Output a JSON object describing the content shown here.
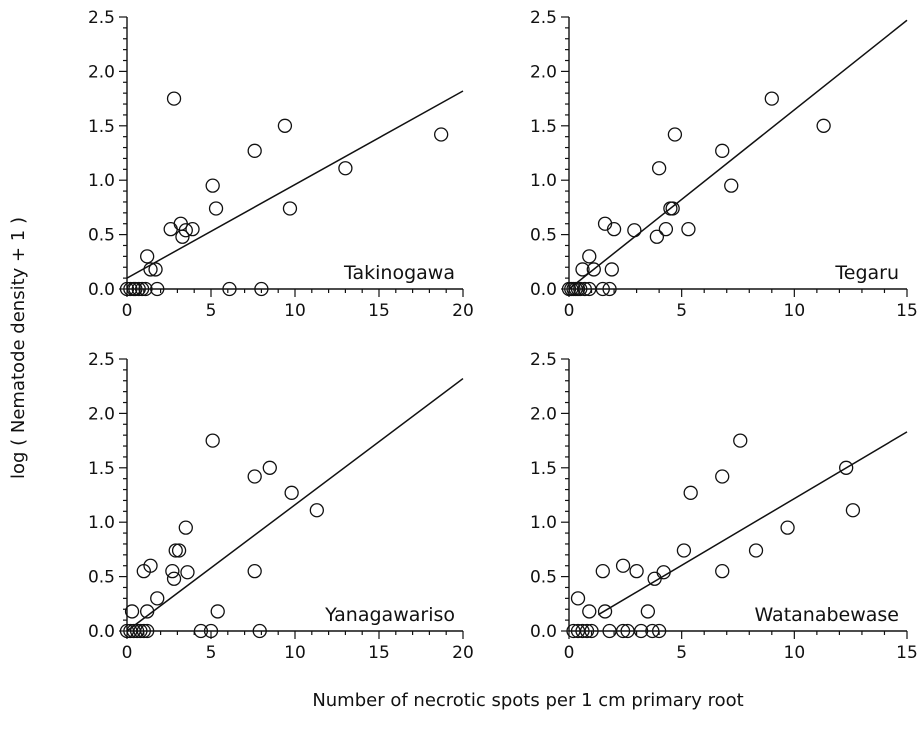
{
  "figure": {
    "ylabel": "log ( Nematode density + 1 )",
    "xlabel": "Number of necrotic spots per 1 cm primary root"
  },
  "chart_data": [
    {
      "type": "scatter",
      "panel": "Takinogawa",
      "title": "",
      "xlim": [
        0,
        20
      ],
      "ylim": [
        0,
        2.5
      ],
      "xticks": [
        0,
        5,
        10,
        15,
        20
      ],
      "yticks": [
        0.0,
        0.5,
        1.0,
        1.5,
        2.0,
        2.5
      ],
      "xtick_labels": [
        "0",
        "5",
        "10",
        "15",
        "20"
      ],
      "ytick_labels": [
        "0.0",
        "0.5",
        "1.0",
        "1.5",
        "2.0",
        "2.5"
      ],
      "fit_line": [
        [
          0,
          0.1
        ],
        [
          20,
          1.82
        ]
      ],
      "points": [
        [
          0,
          0
        ],
        [
          0.2,
          0
        ],
        [
          0.4,
          0
        ],
        [
          0.5,
          0
        ],
        [
          0.7,
          0
        ],
        [
          0.9,
          0
        ],
        [
          1.1,
          0
        ],
        [
          1.8,
          0
        ],
        [
          6.1,
          0
        ],
        [
          8.0,
          0
        ],
        [
          1.2,
          0.3
        ],
        [
          1.4,
          0.18
        ],
        [
          1.7,
          0.18
        ],
        [
          2.6,
          0.55
        ],
        [
          3.2,
          0.6
        ],
        [
          3.3,
          0.48
        ],
        [
          3.5,
          0.54
        ],
        [
          3.9,
          0.55
        ],
        [
          2.8,
          1.75
        ],
        [
          5.1,
          0.95
        ],
        [
          5.3,
          0.74
        ],
        [
          7.6,
          1.27
        ],
        [
          9.4,
          1.5
        ],
        [
          9.7,
          0.74
        ],
        [
          13.0,
          1.11
        ],
        [
          18.7,
          1.42
        ]
      ]
    },
    {
      "type": "scatter",
      "panel": "Tegaru",
      "title": "",
      "xlim": [
        0,
        15
      ],
      "ylim": [
        0,
        2.5
      ],
      "xticks": [
        0,
        5,
        10,
        15
      ],
      "yticks": [
        0.0,
        0.5,
        1.0,
        1.5,
        2.0,
        2.5
      ],
      "xtick_labels": [
        "0",
        "5",
        "10",
        "15"
      ],
      "ytick_labels": [
        "0.0",
        "0.5",
        "1.0",
        "1.5",
        "2.0",
        "2.5"
      ],
      "fit_line": [
        [
          0,
          0.0
        ],
        [
          15,
          2.47
        ]
      ],
      "points": [
        [
          0,
          0
        ],
        [
          0.1,
          0
        ],
        [
          0.2,
          0
        ],
        [
          0.3,
          0
        ],
        [
          0.4,
          0
        ],
        [
          0.5,
          0
        ],
        [
          0.7,
          0
        ],
        [
          0.9,
          0
        ],
        [
          1.5,
          0
        ],
        [
          1.8,
          0
        ],
        [
          0.6,
          0.18
        ],
        [
          0.9,
          0.3
        ],
        [
          1.1,
          0.18
        ],
        [
          1.9,
          0.18
        ],
        [
          1.6,
          0.6
        ],
        [
          2.0,
          0.55
        ],
        [
          2.9,
          0.54
        ],
        [
          3.9,
          0.48
        ],
        [
          4.3,
          0.55
        ],
        [
          4.5,
          0.74
        ],
        [
          4.6,
          0.74
        ],
        [
          5.3,
          0.55
        ],
        [
          4.0,
          1.11
        ],
        [
          4.7,
          1.42
        ],
        [
          6.8,
          1.27
        ],
        [
          7.2,
          0.95
        ],
        [
          9.0,
          1.75
        ],
        [
          11.3,
          1.5
        ]
      ]
    },
    {
      "type": "scatter",
      "panel": "Yanagawariso",
      "title": "",
      "xlim": [
        0,
        20
      ],
      "ylim": [
        0,
        2.5
      ],
      "xticks": [
        0,
        5,
        10,
        15,
        20
      ],
      "yticks": [
        0.0,
        0.5,
        1.0,
        1.5,
        2.0,
        2.5
      ],
      "xtick_labels": [
        "0",
        "5",
        "10",
        "15",
        "20"
      ],
      "ytick_labels": [
        "0.0",
        "0.5",
        "1.0",
        "1.5",
        "2.0",
        "2.5"
      ],
      "fit_line": [
        [
          0,
          0.0
        ],
        [
          20,
          2.32
        ]
      ],
      "points": [
        [
          0,
          0
        ],
        [
          0.2,
          0
        ],
        [
          0.4,
          0
        ],
        [
          0.6,
          0
        ],
        [
          0.8,
          0
        ],
        [
          1.0,
          0
        ],
        [
          1.2,
          0
        ],
        [
          4.4,
          0
        ],
        [
          5.0,
          0
        ],
        [
          7.9,
          0
        ],
        [
          0.3,
          0.18
        ],
        [
          1.2,
          0.18
        ],
        [
          1.8,
          0.3
        ],
        [
          1.0,
          0.55
        ],
        [
          1.4,
          0.6
        ],
        [
          2.7,
          0.55
        ],
        [
          2.8,
          0.48
        ],
        [
          2.9,
          0.74
        ],
        [
          3.1,
          0.74
        ],
        [
          3.6,
          0.54
        ],
        [
          3.5,
          0.95
        ],
        [
          5.1,
          1.75
        ],
        [
          5.4,
          0.18
        ],
        [
          7.6,
          1.42
        ],
        [
          7.6,
          0.55
        ],
        [
          8.5,
          1.5
        ],
        [
          9.8,
          1.27
        ],
        [
          11.3,
          1.11
        ]
      ]
    },
    {
      "type": "scatter",
      "panel": "Watanabewase",
      "title": "",
      "xlim": [
        0,
        15
      ],
      "ylim": [
        0,
        2.5
      ],
      "xticks": [
        0,
        5,
        10,
        15
      ],
      "yticks": [
        0.0,
        0.5,
        1.0,
        1.5,
        2.0,
        2.5
      ],
      "xtick_labels": [
        "0",
        "5",
        "10",
        "15"
      ],
      "ytick_labels": [
        "0.0",
        "0.5",
        "1.0",
        "1.5",
        "2.0",
        "2.5"
      ],
      "fit_line": [
        [
          1.3,
          0.15
        ],
        [
          15,
          1.83
        ]
      ],
      "points": [
        [
          0.2,
          0
        ],
        [
          0.4,
          0
        ],
        [
          0.6,
          0
        ],
        [
          0.8,
          0
        ],
        [
          1.0,
          0
        ],
        [
          1.8,
          0
        ],
        [
          2.4,
          0
        ],
        [
          2.6,
          0
        ],
        [
          3.2,
          0
        ],
        [
          3.7,
          0
        ],
        [
          4.0,
          0
        ],
        [
          0.4,
          0.3
        ],
        [
          0.9,
          0.18
        ],
        [
          1.6,
          0.18
        ],
        [
          3.5,
          0.18
        ],
        [
          1.5,
          0.55
        ],
        [
          2.4,
          0.6
        ],
        [
          3.0,
          0.55
        ],
        [
          3.8,
          0.48
        ],
        [
          4.2,
          0.54
        ],
        [
          5.1,
          0.74
        ],
        [
          5.4,
          1.27
        ],
        [
          6.8,
          1.42
        ],
        [
          6.8,
          0.55
        ],
        [
          7.6,
          1.75
        ],
        [
          8.3,
          0.74
        ],
        [
          9.7,
          0.95
        ],
        [
          12.3,
          1.5
        ],
        [
          12.6,
          1.11
        ]
      ]
    }
  ]
}
